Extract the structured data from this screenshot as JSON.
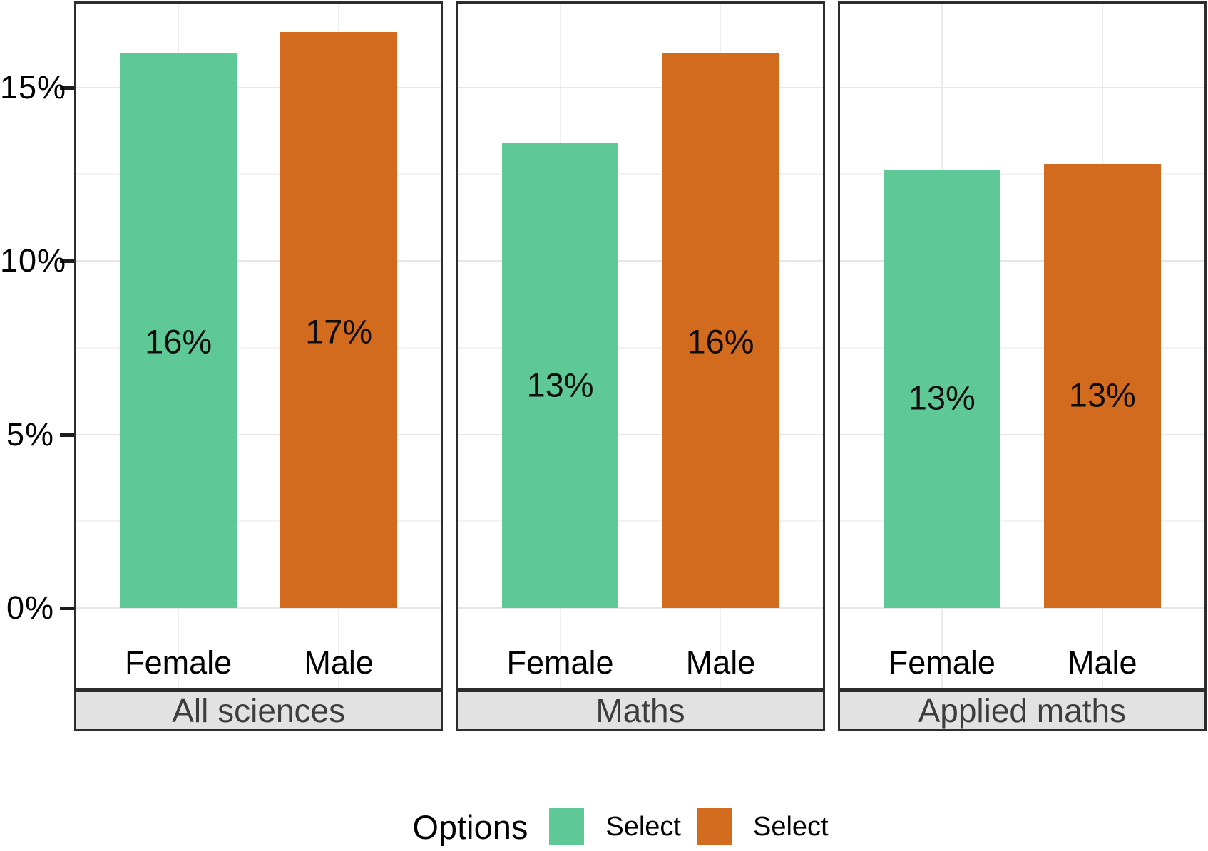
{
  "chart_data": {
    "type": "bar",
    "title": "",
    "xlabel": "",
    "ylabel": "",
    "categories": [
      "Female",
      "Male"
    ],
    "series_colors": [
      "#5EC997",
      "#D36B1E"
    ],
    "facets": [
      {
        "label": "All sciences",
        "values": [
          16.0,
          16.6
        ],
        "bar_labels": [
          "16%",
          "17%"
        ]
      },
      {
        "label": "Maths",
        "values": [
          13.4,
          16.0
        ],
        "bar_labels": [
          "13%",
          "16%"
        ]
      },
      {
        "label": "Applied maths",
        "values": [
          12.6,
          12.8
        ],
        "bar_labels": [
          "13%",
          "13%"
        ]
      }
    ],
    "ylim": [
      0,
      17.4
    ],
    "yticks": [
      0,
      5,
      10,
      15
    ],
    "ytick_labels": [
      "0%",
      "5%",
      "10%",
      "15%"
    ],
    "minor_gridlines": [
      2.5,
      7.5,
      12.5
    ],
    "grid": "major+minor",
    "legend": {
      "title": "Options",
      "entries": [
        "Select",
        "Select"
      ],
      "position": "bottom"
    },
    "style": {
      "panel_border_color": "#2d2d2d",
      "strip_background": "#e2e2e2",
      "strip_text_color": "#3d3d3d",
      "major_grid_color": "#e6e6e6",
      "minor_grid_color": "#f3f3f3"
    }
  }
}
